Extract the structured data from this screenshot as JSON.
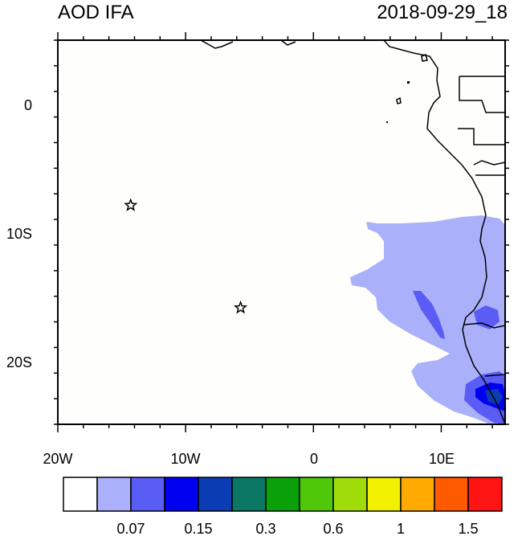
{
  "map": {
    "title": "AOD IFA",
    "datetime": "2018-09-29_18",
    "lon_ticks": [
      {
        "label": "20W",
        "value": -20
      },
      {
        "label": "10W",
        "value": -10
      },
      {
        "label": "0",
        "value": 0
      },
      {
        "label": "10E",
        "value": 10
      }
    ],
    "lat_ticks": [
      {
        "label": "0",
        "value": 0
      },
      {
        "label": "10S",
        "value": -10
      },
      {
        "label": "20S",
        "value": -20
      }
    ],
    "extent": {
      "lon_min": -20,
      "lon_max": 15,
      "lat_min": -25,
      "lat_max": 5
    },
    "stations": [
      {
        "lon": -14.3,
        "lat": -7.9,
        "symbol": "star"
      },
      {
        "lon": -5.7,
        "lat": -15.9,
        "symbol": "star"
      }
    ]
  },
  "colorbar": {
    "colors": [
      "#ffffff",
      "#aab0fa",
      "#5a5cf6",
      "#0000f0",
      "#0a3cb4",
      "#0a7864",
      "#0aa00a",
      "#50c80a",
      "#a0dc0a",
      "#f0f000",
      "#ffaa00",
      "#ff5a00",
      "#ff1414"
    ],
    "labels": [
      "0.07",
      "0.15",
      "0.3",
      "0.6",
      "1",
      "1.5"
    ]
  }
}
